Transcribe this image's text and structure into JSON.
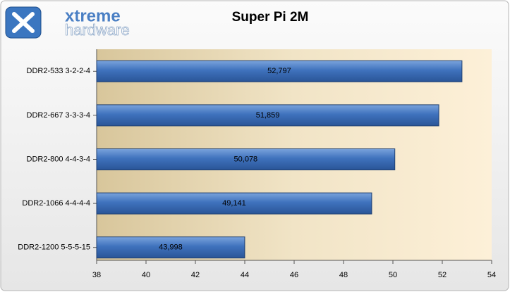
{
  "logo": {
    "line1": "xtreme",
    "line2": "hardware"
  },
  "chart_data": {
    "type": "bar",
    "orientation": "horizontal",
    "title": "Super Pi 2M",
    "categories": [
      "DDR2-533 3-2-2-4",
      "DDR2-667 3-3-3-4",
      "DDR2-800 4-4-3-4",
      "DDR2-1066 4-4-4-4",
      "DDR2-1200 5-5-5-15"
    ],
    "values": [
      52.797,
      51.859,
      50.078,
      49.141,
      43.998
    ],
    "value_labels": [
      "52,797",
      "51,859",
      "50,078",
      "49,141",
      "43,998"
    ],
    "color": "#3f72bd",
    "xlim": [
      38,
      54
    ],
    "xticks": [
      38,
      40,
      42,
      44,
      46,
      48,
      50,
      52,
      54
    ]
  }
}
